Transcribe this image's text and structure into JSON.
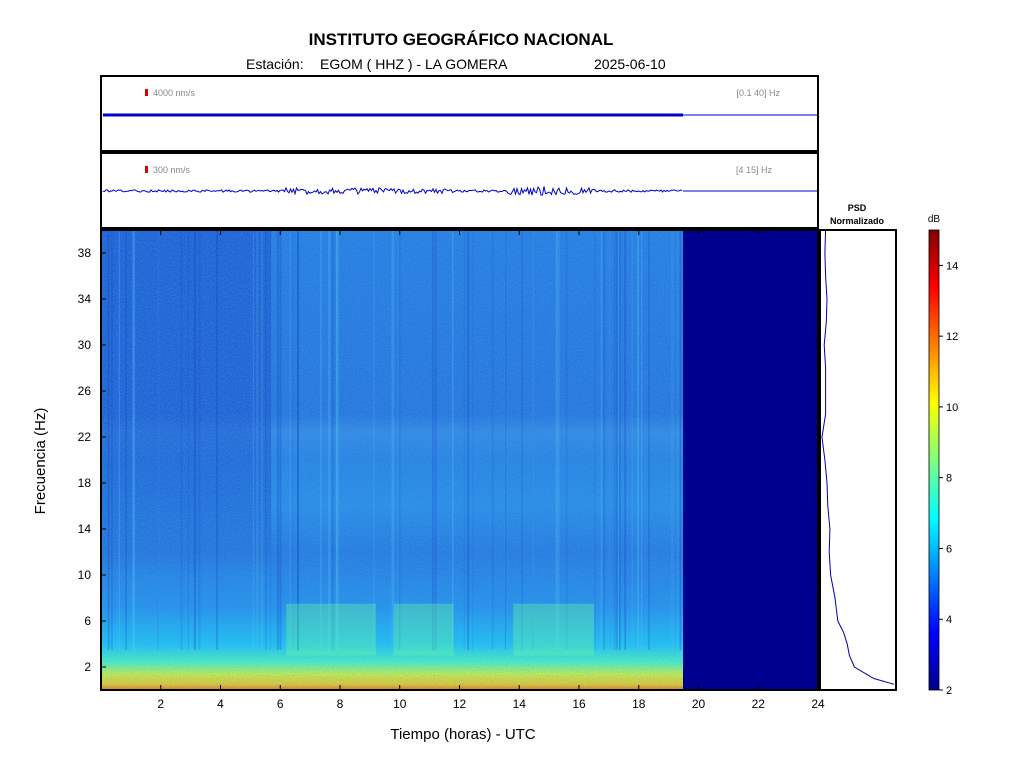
{
  "header": {
    "title": "INSTITUTO GEOGRÁFICO NACIONAL",
    "station_label": "Estación:",
    "station": "EGOM ( HHZ ) - LA GOMERA",
    "date": "2025-06-10"
  },
  "traces": [
    {
      "scale_label": "4000 nm/s",
      "band_label": "[0.1 40] Hz",
      "color": "#0000cc"
    },
    {
      "scale_label": "300 nm/s",
      "band_label": "[4 15] Hz",
      "color": "#0000cc"
    }
  ],
  "chart_data": [
    {
      "type": "heatmap",
      "name": "spectrogram",
      "xlabel": "Tiempo (horas) - UTC",
      "ylabel": "Frecuencia  (Hz)",
      "xlim": [
        0,
        24
      ],
      "ylim": [
        0,
        40
      ],
      "x_ticks": [
        2,
        4,
        6,
        8,
        10,
        12,
        14,
        16,
        18,
        20,
        22,
        24
      ],
      "y_ticks": [
        2,
        6,
        10,
        14,
        18,
        22,
        26,
        30,
        34,
        38
      ],
      "data_end_hour": 19.5,
      "colorscale": "jet"
    },
    {
      "type": "line",
      "name": "psd",
      "title": "PSD\nNormalizado",
      "title_lines": [
        "PSD",
        "Normalizado"
      ],
      "frequencies": [
        0.5,
        1,
        2,
        3,
        4,
        5,
        6,
        7,
        8,
        9,
        10,
        12,
        14,
        16,
        18,
        20,
        21,
        22,
        24,
        26,
        28,
        30,
        32,
        34,
        36,
        38,
        40
      ],
      "values": [
        1.0,
        0.72,
        0.45,
        0.38,
        0.35,
        0.3,
        0.22,
        0.2,
        0.18,
        0.15,
        0.12,
        0.1,
        0.11,
        0.08,
        0.07,
        0.04,
        0.02,
        0.0,
        0.05,
        0.05,
        0.05,
        0.03,
        0.06,
        0.07,
        0.05,
        0.04,
        0.05
      ],
      "ylim": [
        0,
        40
      ]
    },
    {
      "type": "heatmap",
      "name": "colorbar",
      "title": "dB",
      "range": [
        2,
        15
      ],
      "ticks": [
        2,
        4,
        6,
        8,
        10,
        12,
        14
      ]
    }
  ],
  "colors": {
    "trace": "#0000cc",
    "scale_bar": "#dd0000",
    "no_data": "#00008f",
    "psd_line": "#0000aa"
  }
}
